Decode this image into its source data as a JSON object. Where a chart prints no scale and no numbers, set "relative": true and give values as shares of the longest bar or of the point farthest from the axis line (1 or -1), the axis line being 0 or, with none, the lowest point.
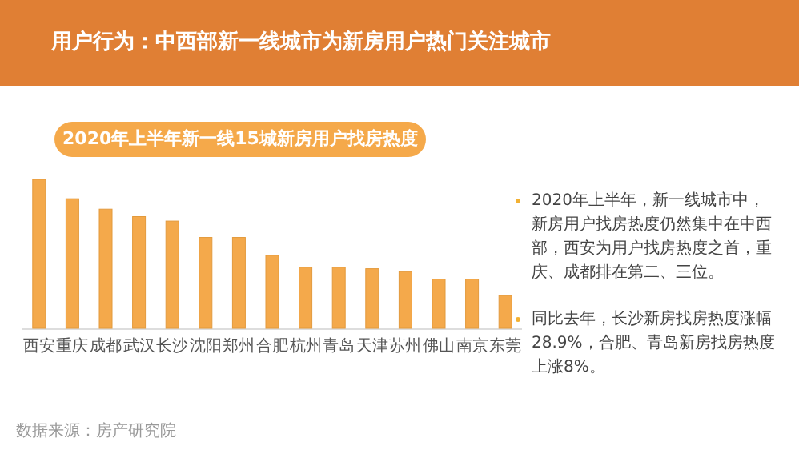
{
  "chart_data": {
    "type": "bar",
    "title": "用户行为：中西部新一线城市为新房用户热门关注城市",
    "subtitle": "2020年上半年新一线15城新房用户找房热度",
    "categories": [
      "西安",
      "重庆",
      "成都",
      "武汉",
      "长沙",
      "沈阳",
      "郑州",
      "合肥",
      "杭州",
      "青岛",
      "天津",
      "苏州",
      "佛山",
      "南京",
      "东莞"
    ],
    "values": [
      1,
      0.87,
      0.8,
      0.75,
      0.72,
      0.61,
      0.61,
      0.49,
      0.41,
      0.41,
      0.4,
      0.38,
      0.33,
      0.33,
      0.22
    ],
    "relative": true,
    "color": "#f4a94b",
    "annotations": [
      "2020年上半年，新一线城市中，新房用户找房热度仍然集中在中西部，西安为用户找房热度之首，重庆、成都排在第二、三位。",
      "同比去年，长沙新房找房热度涨幅28.9%，合肥、青岛新房找房热度上涨8%。",
      "数据来源：房产研究院"
    ]
  }
}
